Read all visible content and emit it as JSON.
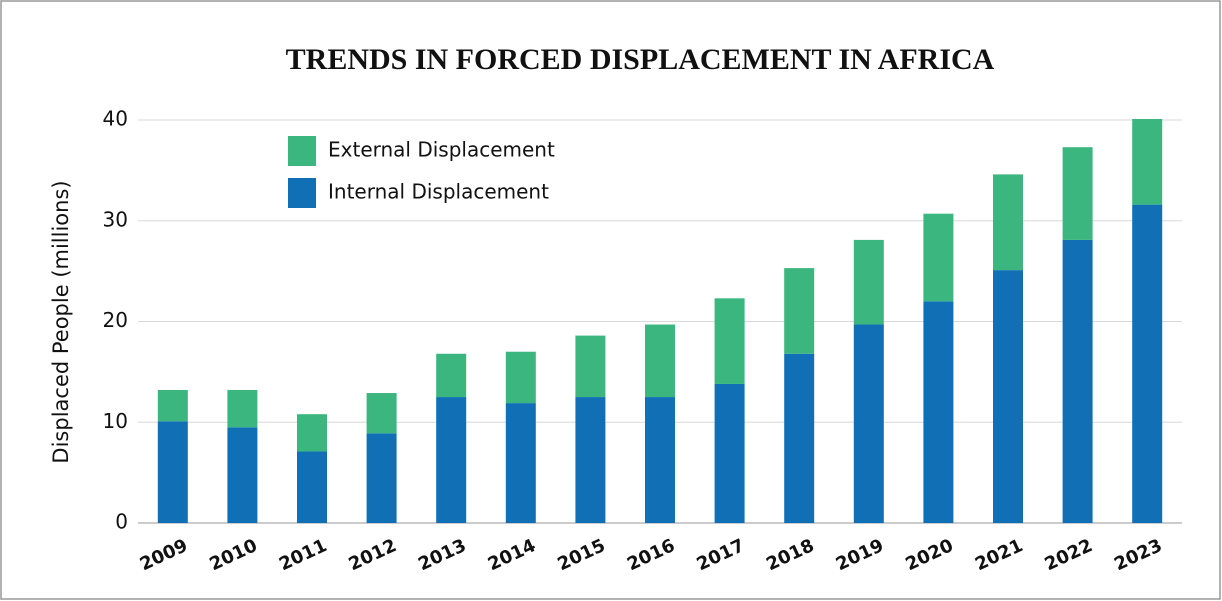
{
  "chart_data": {
    "type": "stacked_bar",
    "title": "TRENDS IN  FORCED DISPLACEMENT IN AFRICA",
    "y_label": "Displaced People (millions)",
    "categories": [
      "2009",
      "2010",
      "2011",
      "2012",
      "2013",
      "2014",
      "2015",
      "2016",
      "2017",
      "2018",
      "2019",
      "2020",
      "2021",
      "2022",
      "2023"
    ],
    "series": [
      {
        "name": "External Displacement",
        "color": "#3bb67e",
        "values": [
          3.1,
          3.7,
          3.7,
          4.0,
          4.3,
          5.1,
          6.1,
          7.2,
          8.5,
          8.5,
          8.4,
          8.7,
          9.5,
          9.2,
          8.5
        ]
      },
      {
        "name": "Internal Displacement",
        "color": "#1170b5",
        "values": [
          10.1,
          9.5,
          7.1,
          8.9,
          12.5,
          11.9,
          12.5,
          12.5,
          13.8,
          16.8,
          19.7,
          22.0,
          25.1,
          28.1,
          31.6
        ]
      }
    ],
    "ylim": [
      0,
      40
    ],
    "yticks": [
      0,
      10,
      20,
      30,
      40
    ],
    "grid": true
  }
}
